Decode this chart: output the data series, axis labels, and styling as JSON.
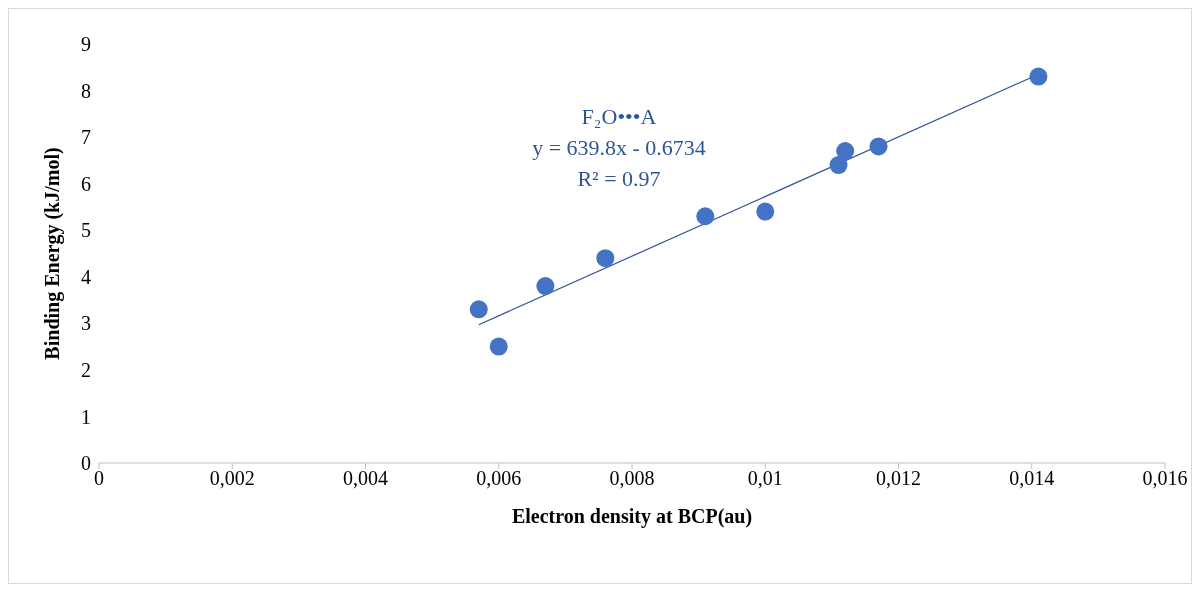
{
  "chart_data": {
    "type": "scatter",
    "xlabel": "Electron density at BCP(au)",
    "ylabel": "Binding Energy (kJ/mol)",
    "series": [
      {
        "color": "#4472c4",
        "x": [
          0.0057,
          0.006,
          0.0067,
          0.0076,
          0.0091,
          0.01,
          0.0111,
          0.0112,
          0.0117,
          0.0141
        ],
        "values": [
          3.3,
          2.5,
          3.8,
          4.4,
          5.3,
          5.4,
          6.4,
          6.7,
          6.8,
          8.3
        ],
        "marker": "circle"
      },
      {
        "type": "line",
        "color": "#2f5597",
        "x": [
          0.0057,
          0.0141
        ],
        "values": [
          2.97,
          8.35
        ],
        "line_style": "solid",
        "marker": "none"
      }
    ],
    "xlim": [
      0,
      0.016
    ],
    "xticks": [
      0,
      {
        "value": 0.002,
        "label": "0,002"
      },
      {
        "value": 0.004,
        "label": "0,004"
      },
      {
        "value": 0.006,
        "label": "0,006"
      },
      {
        "value": 0.008,
        "label": "0,008"
      },
      {
        "value": 0.01,
        "label": "0,01"
      },
      {
        "value": 0.012,
        "label": "0,012"
      },
      {
        "value": 0.014,
        "label": "0,014"
      },
      {
        "value": 0.016,
        "label": "0,016"
      }
    ],
    "ylim": [
      0,
      9
    ],
    "yticks": [
      0,
      1,
      2,
      3,
      4,
      5,
      6,
      7,
      8,
      9
    ],
    "annotations": [
      "F₂O•••A",
      "y = 639.8x - 0.6734",
      "R² = 0.97"
    ],
    "grid": false,
    "legend": false
  }
}
